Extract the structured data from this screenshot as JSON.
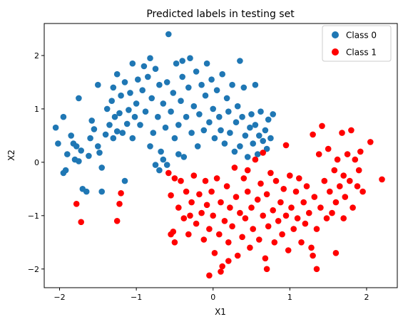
{
  "chart_data": {
    "type": "scatter",
    "title": "Predicted labels in testing set",
    "xlabel": "X1",
    "ylabel": "X2",
    "xlim": [
      -2.2,
      2.4
    ],
    "ylim": [
      -2.35,
      2.6
    ],
    "xticks": [
      {
        "v": -2,
        "label": "−2"
      },
      {
        "v": -1,
        "label": "−1"
      },
      {
        "v": 0,
        "label": "0"
      },
      {
        "v": 1,
        "label": "1"
      },
      {
        "v": 2,
        "label": "2"
      }
    ],
    "yticks": [
      {
        "v": 2,
        "label": "2"
      },
      {
        "v": 1,
        "label": "1"
      },
      {
        "v": 0,
        "label": "0"
      },
      {
        "v": -1,
        "label": "−1"
      },
      {
        "v": -2,
        "label": "−2"
      }
    ],
    "grid": false,
    "legend_position": "top-right",
    "series": [
      {
        "name": "Class 0",
        "color": "#1f77b4",
        "points": [
          [
            -2.05,
            0.65
          ],
          [
            -2.02,
            0.35
          ],
          [
            -1.95,
            0.85
          ],
          [
            -1.92,
            -0.15
          ],
          [
            -1.95,
            -0.2
          ],
          [
            -1.9,
            0.15
          ],
          [
            -1.85,
            0.5
          ],
          [
            -1.82,
            0.35
          ],
          [
            -1.8,
            0.05
          ],
          [
            -1.78,
            0.3
          ],
          [
            -1.75,
            0.02
          ],
          [
            -1.72,
            0.22
          ],
          [
            -1.75,
            1.2
          ],
          [
            -1.7,
            -0.5
          ],
          [
            -1.65,
            -0.55
          ],
          [
            -1.62,
            0.12
          ],
          [
            -1.6,
            0.45
          ],
          [
            -1.58,
            0.78
          ],
          [
            -1.55,
            0.62
          ],
          [
            -1.5,
            0.3
          ],
          [
            -1.48,
            0.18
          ],
          [
            -1.45,
            -0.1
          ],
          [
            -1.45,
            -0.55
          ],
          [
            -1.4,
            0.52
          ],
          [
            -1.38,
            1.0
          ],
          [
            -1.35,
            0.7
          ],
          [
            -1.32,
            1.15
          ],
          [
            -1.3,
            0.45
          ],
          [
            -1.28,
            0.85
          ],
          [
            -1.25,
            0.58
          ],
          [
            -1.22,
            0.92
          ],
          [
            -1.2,
            1.25
          ],
          [
            -1.18,
            0.55
          ],
          [
            -1.15,
            1.5
          ],
          [
            -1.12,
            0.72
          ],
          [
            -1.1,
            0.98
          ],
          [
            -1.08,
            1.3
          ],
          [
            -1.05,
            0.45
          ],
          [
            -1.02,
            0.85
          ],
          [
            -1.0,
            1.1
          ],
          [
            -0.98,
            1.55
          ],
          [
            -0.95,
            0.7
          ],
          [
            -0.92,
            1.35
          ],
          [
            -0.9,
            1.8
          ],
          [
            -0.88,
            0.95
          ],
          [
            -0.85,
            1.6
          ],
          [
            -0.82,
            0.3
          ],
          [
            -0.8,
            1.2
          ],
          [
            -0.78,
            0.55
          ],
          [
            -0.75,
            1.75
          ],
          [
            -0.72,
            0.85
          ],
          [
            -0.7,
            1.45
          ],
          [
            -0.68,
            0.2
          ],
          [
            -0.65,
            1.1
          ],
          [
            -0.62,
            0.65
          ],
          [
            -0.6,
            1.5
          ],
          [
            -0.58,
            2.4
          ],
          [
            -0.55,
            0.95
          ],
          [
            -0.52,
            1.3
          ],
          [
            -0.5,
            0.45
          ],
          [
            -0.48,
            1.85
          ],
          [
            -0.45,
            0.7
          ],
          [
            -0.42,
            1.15
          ],
          [
            -0.4,
            1.6
          ],
          [
            -0.38,
            0.1
          ],
          [
            -0.35,
            0.85
          ],
          [
            -0.32,
            1.4
          ],
          [
            -0.3,
            1.95
          ],
          [
            -0.28,
            0.55
          ],
          [
            -0.25,
            1.05
          ],
          [
            -0.22,
            1.7
          ],
          [
            -0.2,
            0.3
          ],
          [
            -0.18,
            0.9
          ],
          [
            -0.15,
            1.45
          ],
          [
            -0.12,
            0.6
          ],
          [
            -0.1,
            1.25
          ],
          [
            -0.08,
            1.85
          ],
          [
            -0.05,
            0.75
          ],
          [
            -0.02,
            1.55
          ],
          [
            0.0,
            1.0
          ],
          [
            0.02,
            0.45
          ],
          [
            0.05,
            1.35
          ],
          [
            0.08,
            0.85
          ],
          [
            0.1,
            0.6
          ],
          [
            0.12,
            1.65
          ],
          [
            0.15,
            0.35
          ],
          [
            0.18,
            1.2
          ],
          [
            0.2,
            0.95
          ],
          [
            0.22,
            0.55
          ],
          [
            0.25,
            1.45
          ],
          [
            0.28,
            0.2
          ],
          [
            0.3,
            0.75
          ],
          [
            0.32,
            1.05
          ],
          [
            0.35,
            0.3
          ],
          [
            0.38,
            0.85
          ],
          [
            0.4,
            1.4
          ],
          [
            0.42,
            0.5
          ],
          [
            0.45,
            0.1
          ],
          [
            0.48,
            0.65
          ],
          [
            0.5,
            0.9
          ],
          [
            0.52,
            0.35
          ],
          [
            0.55,
            0.7
          ],
          [
            0.58,
            0.15
          ],
          [
            0.6,
            0.5
          ],
          [
            0.62,
            0.95
          ],
          [
            0.65,
            0.4
          ],
          [
            0.68,
            0.6
          ],
          [
            0.7,
            0.25
          ],
          [
            0.72,
            0.8
          ],
          [
            0.75,
            0.45
          ],
          [
            0.78,
            0.9
          ],
          [
            -1.15,
            -0.35
          ],
          [
            -0.75,
            -0.05
          ],
          [
            -0.7,
            -0.15
          ],
          [
            -0.65,
            0.05
          ],
          [
            -0.6,
            -0.05
          ],
          [
            -0.45,
            0.15
          ],
          [
            -1.3,
            1.4
          ],
          [
            -1.5,
            1.45
          ],
          [
            -1.25,
            1.65
          ],
          [
            -1.05,
            1.85
          ],
          [
            -0.82,
            1.95
          ],
          [
            -0.4,
            1.9
          ],
          [
            0.35,
            1.9
          ],
          [
            0.55,
            1.45
          ]
        ]
      },
      {
        "name": "Class 1",
        "color": "#ff0000",
        "points": [
          [
            -1.78,
            -0.78
          ],
          [
            -1.72,
            -1.12
          ],
          [
            -1.2,
            -0.58
          ],
          [
            -1.22,
            -0.78
          ],
          [
            -1.25,
            -1.1
          ],
          [
            -0.58,
            -0.2
          ],
          [
            -0.55,
            -0.62
          ],
          [
            -0.52,
            -1.3
          ],
          [
            -0.5,
            -1.5
          ],
          [
            -0.45,
            -0.85
          ],
          [
            -0.42,
            -0.35
          ],
          [
            -0.38,
            -1.05
          ],
          [
            -0.35,
            -0.55
          ],
          [
            -0.32,
            -1.35
          ],
          [
            -0.28,
            -0.75
          ],
          [
            -0.25,
            -0.25
          ],
          [
            -0.22,
            -1.15
          ],
          [
            -0.18,
            -0.6
          ],
          [
            -0.15,
            -0.95
          ],
          [
            -0.12,
            -1.45
          ],
          [
            -0.1,
            -0.35
          ],
          [
            -0.08,
            -0.8
          ],
          [
            -0.05,
            -1.25
          ],
          [
            -0.02,
            -0.55
          ],
          [
            0.0,
            -1.0
          ],
          [
            0.02,
            -1.7
          ],
          [
            0.05,
            -0.3
          ],
          [
            0.08,
            -1.35
          ],
          [
            0.1,
            -0.75
          ],
          [
            0.12,
            -1.95
          ],
          [
            0.15,
            -1.1
          ],
          [
            0.18,
            -0.45
          ],
          [
            0.2,
            -1.5
          ],
          [
            0.22,
            -0.85
          ],
          [
            0.25,
            -1.2
          ],
          [
            0.28,
            -0.1
          ],
          [
            0.3,
            -0.65
          ],
          [
            0.32,
            -1.75
          ],
          [
            0.35,
            -0.95
          ],
          [
            0.38,
            -1.4
          ],
          [
            0.4,
            -0.3
          ],
          [
            0.42,
            -1.05
          ],
          [
            0.45,
            -0.55
          ],
          [
            0.48,
            -1.6
          ],
          [
            0.5,
            -0.85
          ],
          [
            0.52,
            -1.25
          ],
          [
            0.55,
            0.05
          ],
          [
            0.58,
            -0.7
          ],
          [
            0.6,
            -1.45
          ],
          [
            0.62,
            -0.4
          ],
          [
            0.65,
            -1.0
          ],
          [
            0.68,
            -1.8
          ],
          [
            0.7,
            -0.6
          ],
          [
            0.72,
            -1.2
          ],
          [
            0.75,
            -0.2
          ],
          [
            0.78,
            -0.9
          ],
          [
            0.8,
            -1.5
          ],
          [
            0.82,
            -0.35
          ],
          [
            0.85,
            -1.1
          ],
          [
            0.88,
            -0.75
          ],
          [
            0.9,
            -1.35
          ],
          [
            0.92,
            -0.5
          ],
          [
            0.95,
            -1.0
          ],
          [
            0.98,
            -1.65
          ],
          [
            1.0,
            -0.25
          ],
          [
            1.02,
            -0.85
          ],
          [
            1.05,
            -1.25
          ],
          [
            1.08,
            -0.55
          ],
          [
            1.1,
            -1.05
          ],
          [
            1.12,
            -0.3
          ],
          [
            1.15,
            -1.5
          ],
          [
            1.18,
            -0.75
          ],
          [
            1.2,
            -1.15
          ],
          [
            1.22,
            -0.45
          ],
          [
            1.25,
            -0.95
          ],
          [
            1.28,
            -1.6
          ],
          [
            1.3,
            0.52
          ],
          [
            1.32,
            -0.65
          ],
          [
            1.35,
            -1.25
          ],
          [
            1.38,
            0.15
          ],
          [
            1.4,
            -0.85
          ],
          [
            1.42,
            0.68
          ],
          [
            1.45,
            -0.35
          ],
          [
            1.48,
            -1.05
          ],
          [
            1.5,
            0.25
          ],
          [
            1.52,
            -0.55
          ],
          [
            1.55,
            -0.95
          ],
          [
            1.58,
            -0.15
          ],
          [
            1.6,
            -0.75
          ],
          [
            1.62,
            0.05
          ],
          [
            1.65,
            -0.45
          ],
          [
            1.68,
            0.55
          ],
          [
            1.7,
            -0.25
          ],
          [
            1.72,
            -0.65
          ],
          [
            1.75,
            0.15
          ],
          [
            1.78,
            -0.35
          ],
          [
            1.8,
            0.6
          ],
          [
            1.82,
            -0.85
          ],
          [
            1.85,
            0.05
          ],
          [
            1.88,
            -0.45
          ],
          [
            1.9,
            -0.15
          ],
          [
            1.92,
            0.2
          ],
          [
            1.95,
            -0.55
          ],
          [
            2.05,
            0.38
          ],
          [
            2.2,
            -0.32
          ],
          [
            -0.5,
            -0.3
          ],
          [
            -0.3,
            -1.0
          ],
          [
            0.1,
            -2.05
          ],
          [
            0.2,
            -1.85
          ],
          [
            -0.05,
            -2.12
          ],
          [
            1.35,
            -2.0
          ],
          [
            0.7,
            -2.0
          ],
          [
            0.95,
            0.32
          ],
          [
            1.3,
            -1.75
          ],
          [
            1.6,
            -1.7
          ],
          [
            1.7,
            -1.05
          ],
          [
            -0.55,
            -1.35
          ],
          [
            0.45,
            -0.15
          ],
          [
            0.65,
            0.18
          ]
        ]
      }
    ]
  }
}
